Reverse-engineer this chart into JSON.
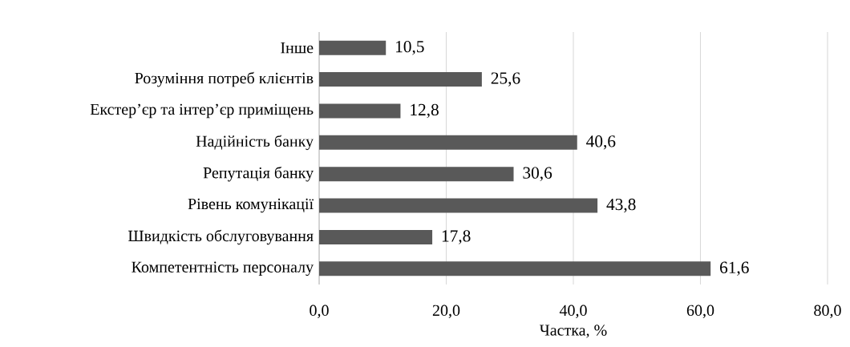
{
  "chart_data": {
    "type": "bar",
    "orientation": "horizontal",
    "xlabel": "Частка, %",
    "categories": [
      "Інше",
      "Розуміння потреб клієнтів",
      "Екстер’єр та інтер’єр приміщень",
      "Надійність банку",
      "Репутація банку",
      "Рівень комунікації",
      "Швидкість обслуговування",
      "Компетентність персоналу"
    ],
    "values": [
      10.5,
      25.6,
      12.8,
      40.6,
      30.6,
      43.8,
      17.8,
      61.6
    ],
    "value_labels": [
      "10,5",
      "25,6",
      "12,8",
      "40,6",
      "30,6",
      "43,8",
      "17,8",
      "61,6"
    ],
    "color": "#595959",
    "xlim": [
      0,
      80
    ],
    "xticks": [
      {
        "value": 0,
        "label": "0,0"
      },
      {
        "value": 20,
        "label": "20,0"
      },
      {
        "value": 40,
        "label": "40,0"
      },
      {
        "value": 60,
        "label": "60,0"
      },
      {
        "value": 80,
        "label": "80,0"
      }
    ],
    "grid": "x"
  }
}
